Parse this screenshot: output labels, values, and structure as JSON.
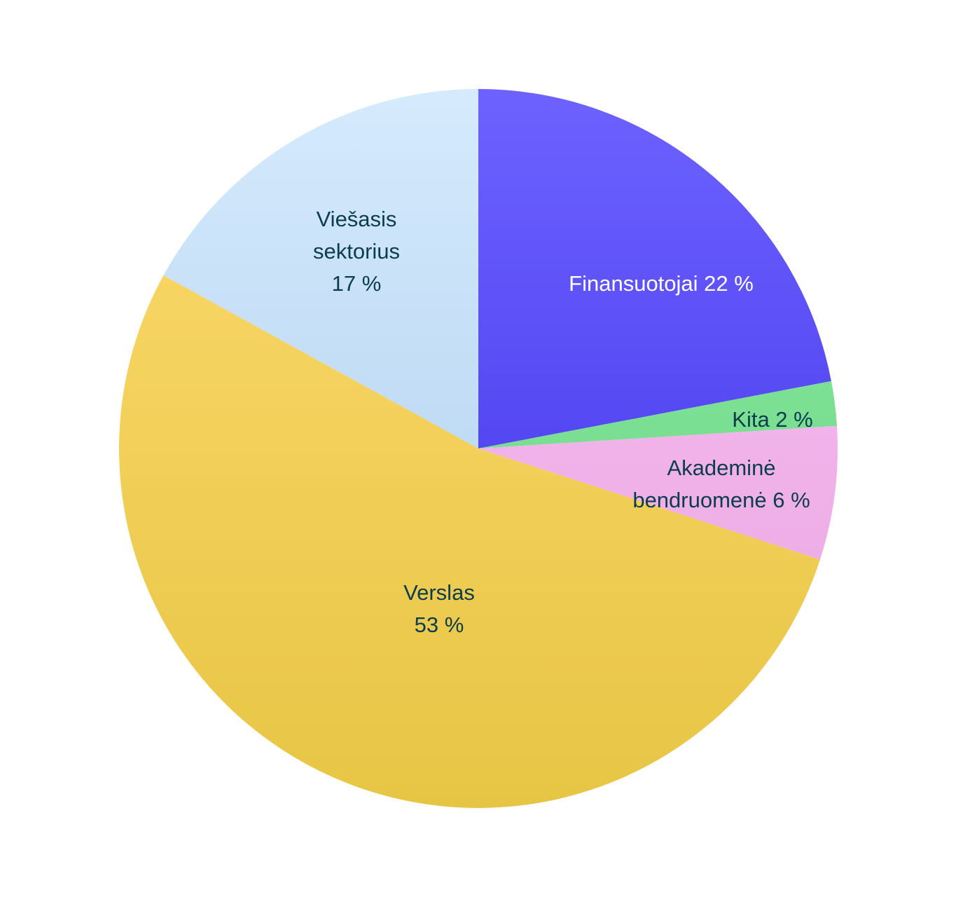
{
  "chart_data": {
    "type": "pie",
    "title": "",
    "start": "12 o'clock",
    "direction": "clockwise",
    "legend": "none",
    "slices": [
      {
        "label": "Finansuotojai",
        "value": 22,
        "value_label": "22 %",
        "color_top": "#6D62FF",
        "color_bottom": "#3A2CE6",
        "text_color": "#FFFFFF",
        "label_lines": [
          "Finansuotojai 22 %"
        ]
      },
      {
        "label": "Kita",
        "value": 2,
        "value_label": "2 %",
        "color_top": "#86E89C",
        "color_bottom": "#6ED588",
        "text_color": "#0B3D4C",
        "label_lines": [
          "Kita 2 %"
        ]
      },
      {
        "label": "Akademinė bendruomenė",
        "value": 6,
        "value_label": "6 %",
        "color_top": "#F8C5F4",
        "color_bottom": "#E9A0DE",
        "text_color": "#0B3D4C",
        "label_lines": [
          "Akademinė",
          "bendruomenė 6 %"
        ]
      },
      {
        "label": "Verslas",
        "value": 53,
        "value_label": "53 %",
        "color_top": "#FDDA6E",
        "color_bottom": "#E7C544",
        "text_color": "#0B3D4C",
        "label_lines": [
          "Verslas",
          "53 %"
        ]
      },
      {
        "label": "Viešasis sektorius",
        "value": 17,
        "value_label": "17 %",
        "color_top": "#D5EAFD",
        "color_bottom": "#A9CBEA",
        "text_color": "#0B3D4C",
        "label_lines": [
          "Viešasis",
          "sektorius",
          "17 %"
        ]
      }
    ]
  }
}
